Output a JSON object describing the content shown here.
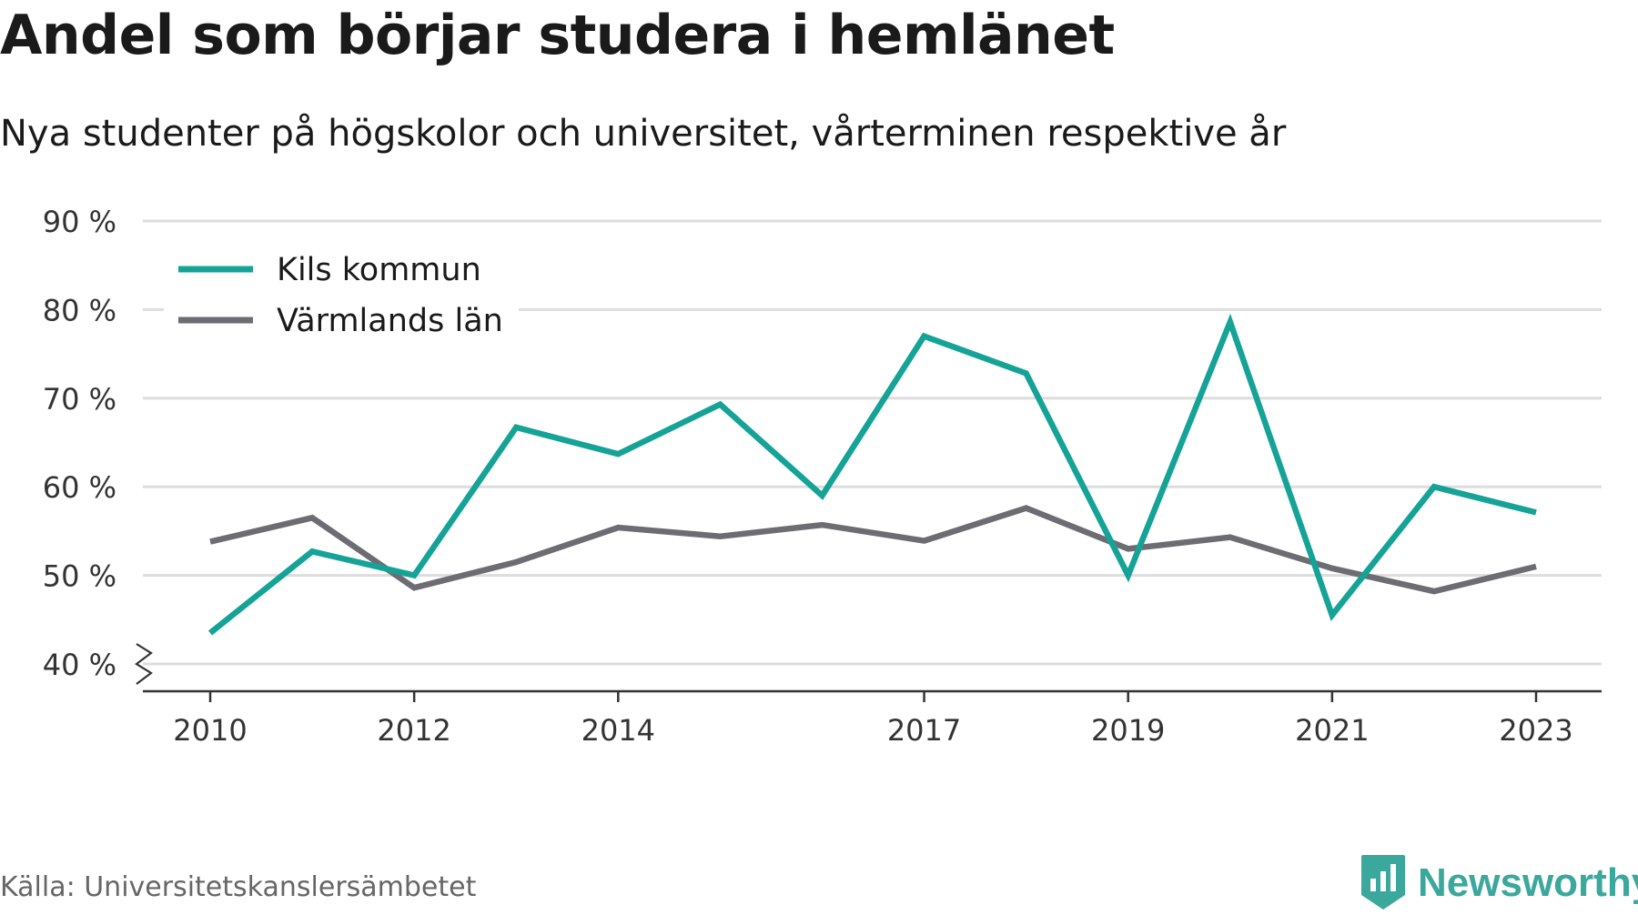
{
  "title": "Andel som börjar studera i hemlänet",
  "subtitle": "Nya studenter på högskolor och universitet, vårterminen respektive år",
  "source": "Källa: Universitetskanslersämbetet",
  "brand": "Newsworthy",
  "colors": {
    "kils": "#14a396",
    "varmland": "#6e6c73",
    "grid": "#dddddd",
    "axis": "#333333",
    "brand": "#3aa89c"
  },
  "chart_data": {
    "type": "line",
    "x": [
      2010,
      2011,
      2012,
      2013,
      2014,
      2015,
      2016,
      2017,
      2018,
      2019,
      2020,
      2021,
      2022,
      2023
    ],
    "x_tick_labels": [
      "2010",
      "2012",
      "2014",
      "2017",
      "2019",
      "2021",
      "2023"
    ],
    "y_tick_labels": [
      "40 %",
      "50 %",
      "60 %",
      "70 %",
      "80 %",
      "90 %"
    ],
    "y_ticks": [
      40,
      50,
      60,
      70,
      80,
      90
    ],
    "ylim": [
      37,
      90
    ],
    "y_axis_break": true,
    "grid": true,
    "legend_position": "top-left",
    "series": [
      {
        "name": "Kils kommun",
        "color": "#14a396",
        "values": [
          43.5,
          52.7,
          50.0,
          66.7,
          63.7,
          69.3,
          59.0,
          77.0,
          72.8,
          50.0,
          78.6,
          45.5,
          60.0,
          57.1
        ]
      },
      {
        "name": "Värmlands län",
        "color": "#6e6c73",
        "values": [
          53.8,
          56.5,
          48.6,
          51.5,
          55.4,
          54.4,
          55.7,
          53.9,
          57.6,
          53.0,
          54.3,
          50.8,
          48.2,
          51.0
        ]
      }
    ]
  }
}
